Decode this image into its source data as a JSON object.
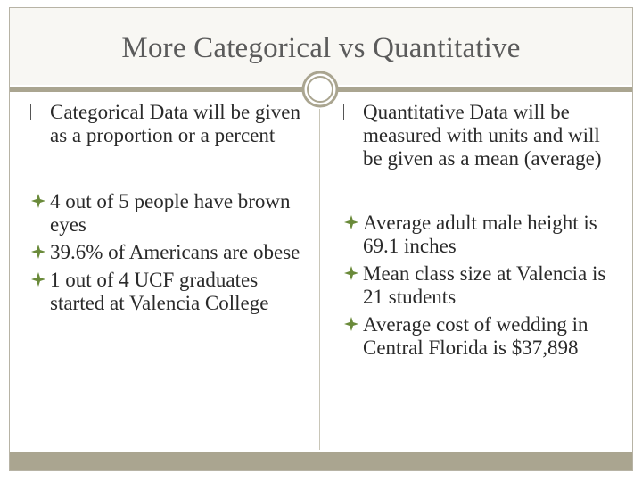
{
  "slide": {
    "title": "More Categorical vs Quantitative",
    "accent_color": "#aaa590",
    "bullet_color": "#6a8a3a"
  },
  "left": {
    "heading": "Categorical Data will be given as a proportion or a percent",
    "examples": [
      "4 out of 5 people have brown eyes",
      "39.6% of Americans are obese",
      "1 out of 4 UCF graduates started at Valencia College"
    ]
  },
  "right": {
    "heading": "Quantitative Data will be measured with units and will be given as a mean (average)",
    "examples": [
      "Average adult male height is 69.1 inches",
      "Mean class size at Valencia is 21 students",
      "Average cost of wedding in Central Florida is $37,898"
    ]
  }
}
